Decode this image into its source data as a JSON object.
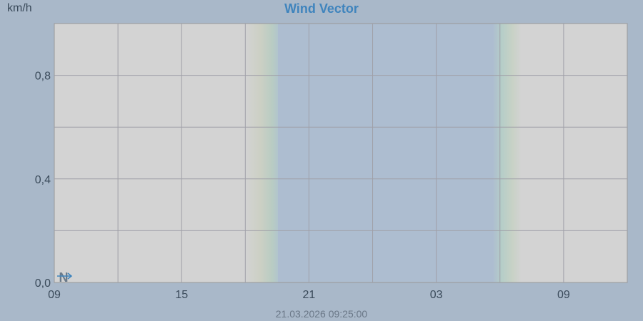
{
  "chart_data": {
    "type": "line",
    "title": "Wind Vector",
    "ylabel": "km/h",
    "xlabel": "",
    "ylim": [
      0,
      1.0
    ],
    "yticks": [
      "0,0",
      "0,4",
      "0,8"
    ],
    "xticks": [
      "09",
      "15",
      "21",
      "03",
      "09"
    ],
    "grid": true,
    "series": [
      {
        "values": [
          {
            "t": "09",
            "speed": 0,
            "direction": "N"
          }
        ]
      }
    ],
    "colors": {
      "background": "#a9b8c9",
      "plot_day": "#d3d3d3",
      "plot_night": "#adbdd0",
      "title": "#3f84bd",
      "vector": "#3f84bd"
    }
  },
  "footer": "21.03.2026 09:25:00"
}
